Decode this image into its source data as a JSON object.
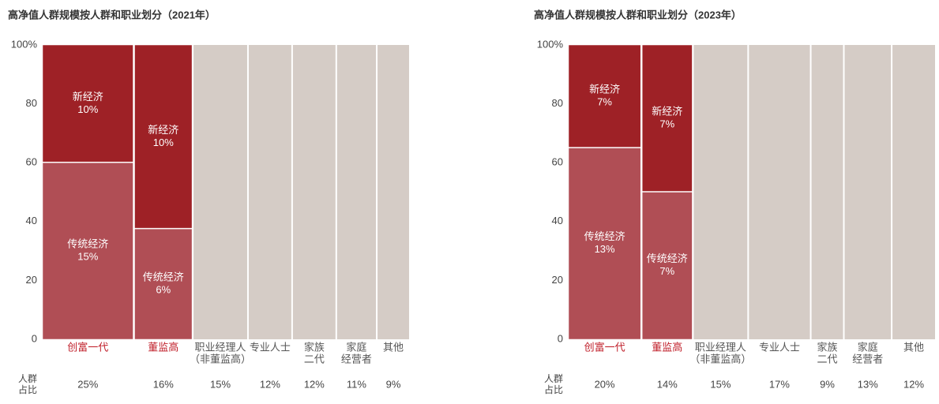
{
  "chart_data": [
    {
      "type": "marimekko",
      "title": "高净值人群规模按人群和职业划分（2021年）",
      "categories": [
        [
          "创富一代"
        ],
        [
          "董监高"
        ],
        [
          "职业经理人",
          "（非董监高）"
        ],
        [
          "专业人士"
        ],
        [
          "家族",
          "二代"
        ],
        [
          "家庭",
          "经营者"
        ],
        [
          "其他"
        ]
      ],
      "category_colors": [
        "#c0202b",
        "#c0202b",
        "#555555",
        "#555555",
        "#555555",
        "#555555",
        "#555555"
      ],
      "shares": {
        "name": [
          "人群",
          "占比"
        ],
        "color": "#d5ccc6",
        "values": [
          25,
          16,
          15,
          12,
          12,
          11,
          9
        ],
        "value_labels": [
          "25%",
          "16%",
          "15%",
          "12%",
          "12%",
          "11%",
          "9%"
        ]
      },
      "series": [
        {
          "name": "传统经济",
          "color": "#b04e55",
          "values": [
            15,
            6,
            null,
            null,
            null,
            null,
            null
          ],
          "value_labels": [
            "15%",
            "6%",
            null,
            null,
            null,
            null,
            null
          ]
        },
        {
          "name": "新经济",
          "color": "#9e2126",
          "values": [
            10,
            10,
            null,
            null,
            null,
            null,
            null
          ],
          "value_labels": [
            "10%",
            "10%",
            null,
            null,
            null,
            null,
            null
          ]
        }
      ],
      "xlim": [
        0,
        100
      ],
      "ylim": [
        0,
        100
      ],
      "yticks": [
        0,
        20,
        40,
        60,
        80,
        {
          "value": 100,
          "label": "100%"
        }
      ]
    },
    {
      "type": "marimekko",
      "title": "高净值人群规模按人群和职业划分（2023年）",
      "categories": [
        [
          "创富一代"
        ],
        [
          "董监高"
        ],
        [
          "职业经理人",
          "（非董监高）"
        ],
        [
          "专业人士"
        ],
        [
          "家族",
          "二代"
        ],
        [
          "家庭",
          "经营者"
        ],
        [
          "其他"
        ]
      ],
      "category_colors": [
        "#c0202b",
        "#c0202b",
        "#555555",
        "#555555",
        "#555555",
        "#555555",
        "#555555"
      ],
      "shares": {
        "name": [
          "人群",
          "占比"
        ],
        "color": "#d5ccc6",
        "values": [
          20,
          14,
          15,
          17,
          9,
          13,
          12
        ],
        "value_labels": [
          "20%",
          "14%",
          "15%",
          "17%",
          "9%",
          "13%",
          "12%"
        ]
      },
      "series": [
        {
          "name": "传统经济",
          "color": "#b04e55",
          "values": [
            13,
            7,
            null,
            null,
            null,
            null,
            null
          ],
          "value_labels": [
            "13%",
            "7%",
            null,
            null,
            null,
            null,
            null
          ]
        },
        {
          "name": "新经济",
          "color": "#9e2126",
          "values": [
            7,
            7,
            null,
            null,
            null,
            null,
            null
          ],
          "value_labels": [
            "7%",
            "7%",
            null,
            null,
            null,
            null,
            null
          ]
        }
      ],
      "xlim": [
        0,
        100
      ],
      "ylim": [
        0,
        100
      ],
      "yticks": [
        0,
        20,
        40,
        60,
        80,
        {
          "value": 100,
          "label": "100%"
        }
      ]
    }
  ]
}
